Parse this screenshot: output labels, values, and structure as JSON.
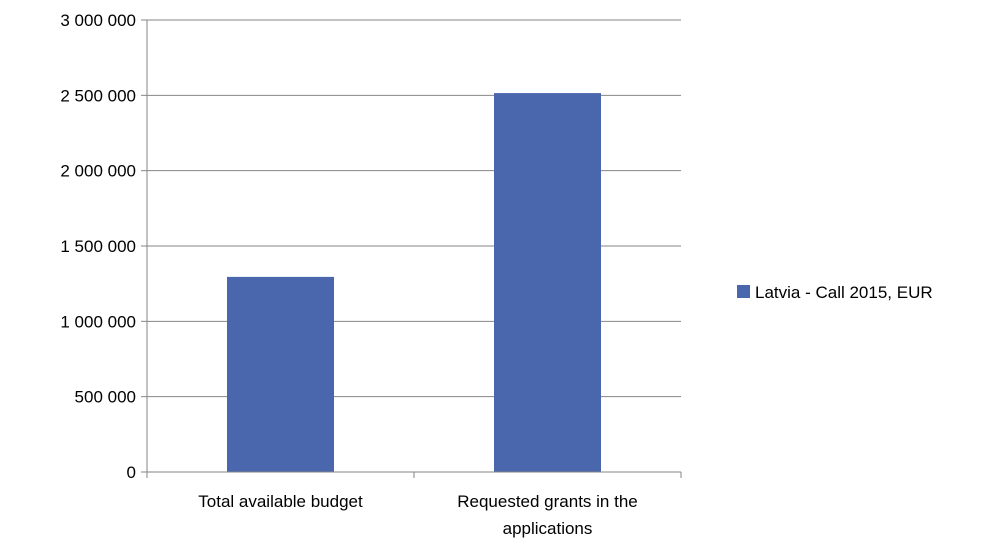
{
  "chart_data": {
    "type": "bar",
    "categories": [
      "Total available budget",
      "Requested grants in the applications"
    ],
    "category_lines": [
      [
        "Total available budget"
      ],
      [
        "Requested grants in the",
        "applications"
      ]
    ],
    "series": [
      {
        "name": "Latvia - Call 2015, EUR",
        "values": [
          1295000,
          2515000
        ],
        "color": "#4a67ae"
      }
    ],
    "ylim": [
      0,
      3000000
    ],
    "yticks": [
      0,
      500000,
      1000000,
      1500000,
      2000000,
      2500000,
      3000000
    ],
    "ytick_labels": [
      "0",
      "500 000",
      "1 000 000",
      "1 500 000",
      "2 000 000",
      "2 500 000",
      "3 000 000"
    ],
    "grid": true,
    "legend_position": "right",
    "title": "",
    "xlabel": "",
    "ylabel": ""
  }
}
